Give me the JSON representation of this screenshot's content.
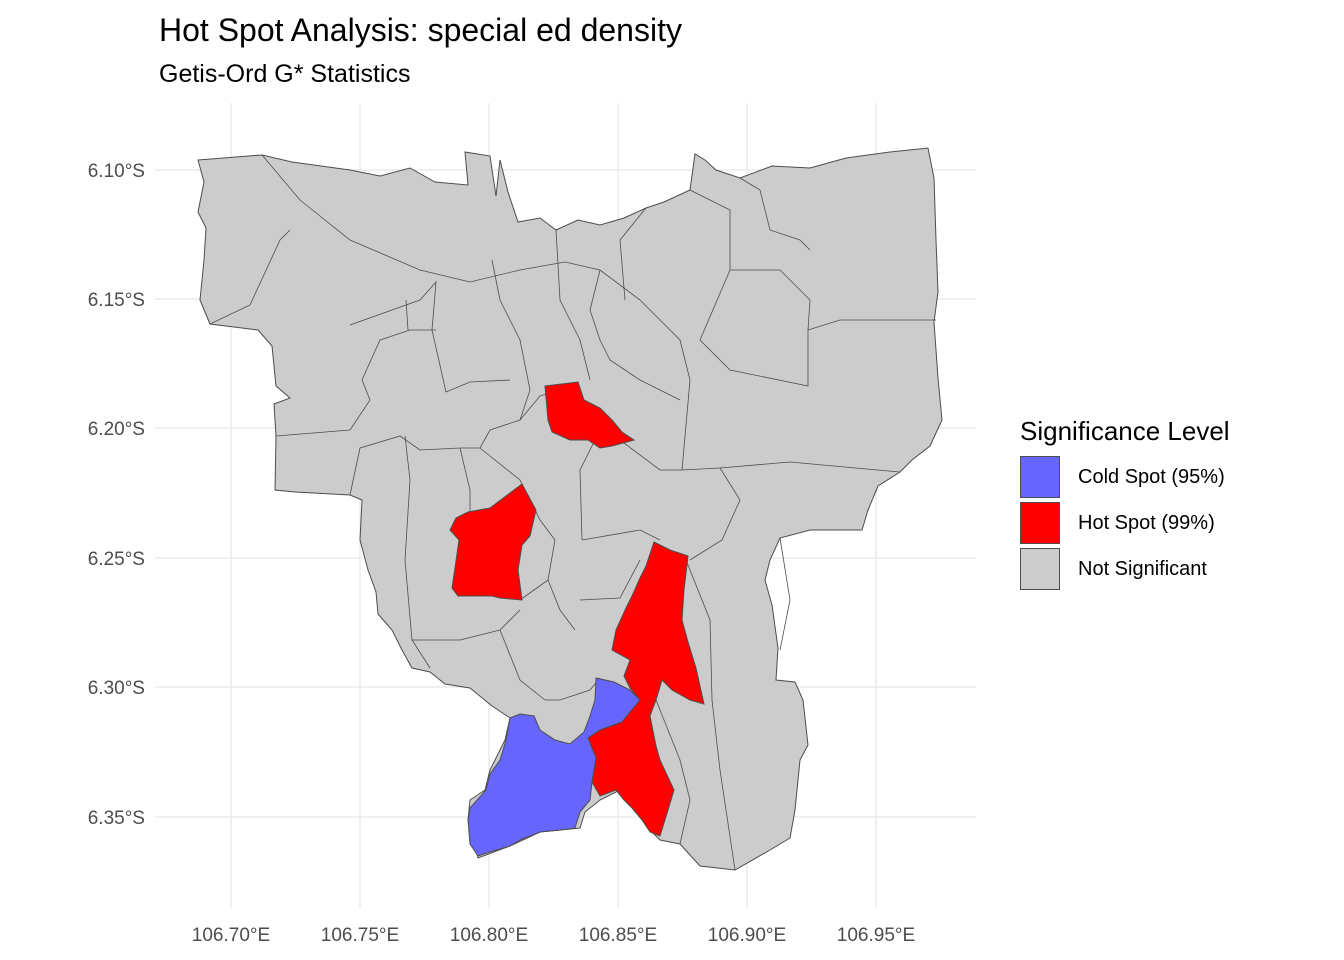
{
  "title": "Hot Spot Analysis: special ed density",
  "subtitle": "Getis-Ord G* Statistics",
  "colors": {
    "cold_spot": "#6666ff",
    "hot_spot": "#ff0000",
    "not_significant": "#cccccc",
    "border": "#4d4d4d",
    "grid": "#ebebeb"
  },
  "axes": {
    "x_ticks": [
      "106.70°E",
      "106.75°E",
      "106.80°E",
      "106.85°E",
      "106.90°E",
      "106.95°E"
    ],
    "y_ticks": [
      "6.10°S",
      "6.15°S",
      "6.20°S",
      "6.25°S",
      "6.30°S",
      "6.35°S"
    ]
  },
  "legend": {
    "title": "Significance Level",
    "items": [
      {
        "label": "Cold Spot (95%)",
        "color": "#6666ff"
      },
      {
        "label": "Hot Spot (99%)",
        "color": "#ff0000"
      },
      {
        "label": "Not Significant",
        "color": "#cccccc"
      }
    ]
  }
}
